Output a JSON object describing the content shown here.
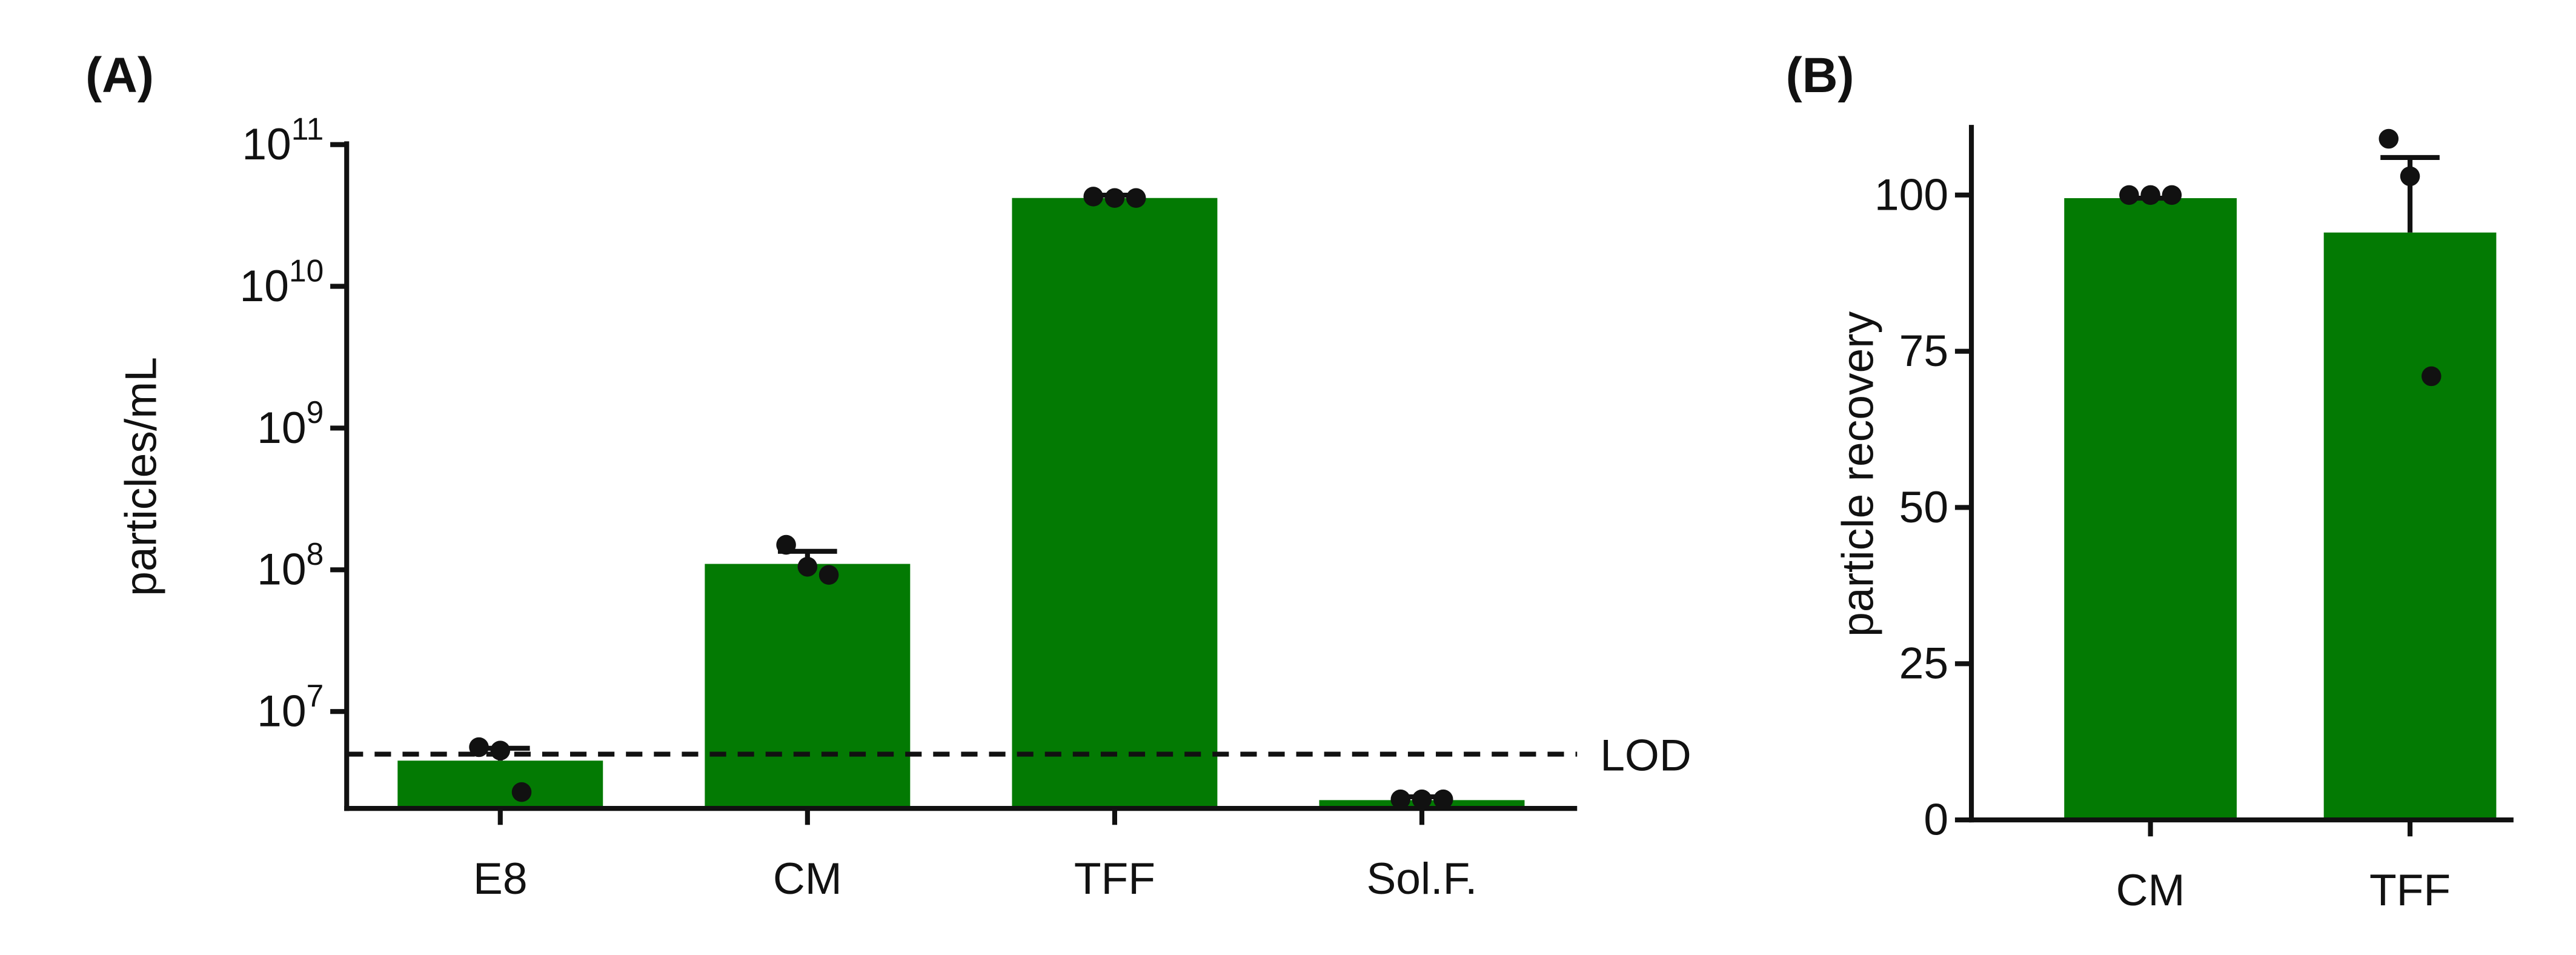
{
  "chart_data": [
    {
      "type": "bar",
      "panel_label": "(A)",
      "ylabel": "particles/mL",
      "log_scale": true,
      "color": "#037a03",
      "categories": [
        "E8",
        "CM",
        "TFF",
        "Sol.F."
      ],
      "values": [
        4500000,
        110000000,
        42000000000,
        2370000
      ],
      "errors": [
        1000000,
        25000000,
        2000000000,
        130000
      ],
      "points": [
        [
          5600000,
          5300000,
          2700000
        ],
        [
          150000000,
          105000000,
          92000000
        ],
        [
          43000000000,
          42000000000,
          42000000000
        ],
        [
          2400000,
          2400000,
          2400000
        ]
      ],
      "ylim": [
        2070000,
        100000000000
      ],
      "yticks": [
        {
          "value": 10000000,
          "label": "10",
          "sup": "7"
        },
        {
          "value": 100000000,
          "label": "10",
          "sup": "8"
        },
        {
          "value": 1000000000,
          "label": "10",
          "sup": "9"
        },
        {
          "value": 10000000000,
          "label": "10",
          "sup": "10"
        },
        {
          "value": 100000000000,
          "label": "10",
          "sup": "11"
        }
      ],
      "annotations": [
        {
          "label": "LOD",
          "value": 5000000
        }
      ]
    },
    {
      "type": "bar",
      "panel_label": "(B)",
      "ylabel": "particle recovery",
      "log_scale": false,
      "color": "#037a03",
      "categories": [
        "CM",
        "TFF"
      ],
      "values": [
        99.5,
        94
      ],
      "errors": [
        0,
        12
      ],
      "points": [
        [
          100,
          100,
          100
        ],
        [
          109,
          103,
          71
        ]
      ],
      "ylim": [
        0,
        110.7
      ],
      "yticks": [
        0,
        25,
        50,
        75,
        100
      ]
    }
  ]
}
